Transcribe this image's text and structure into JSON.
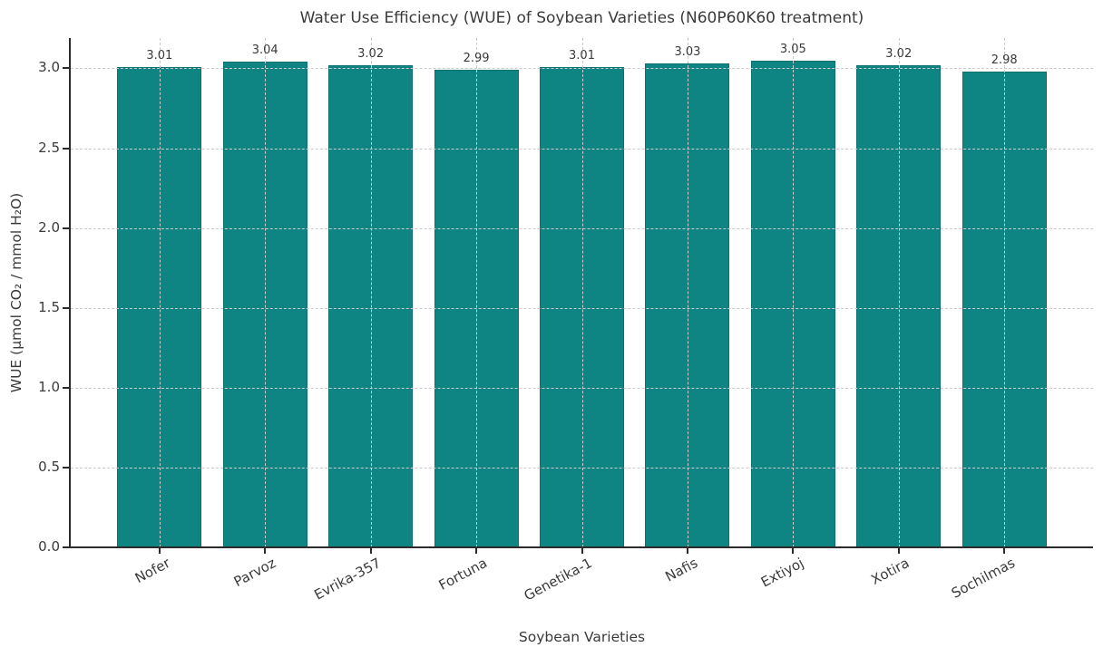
{
  "chart_data": {
    "type": "bar",
    "title": "Water Use Efficiency (WUE) of Soybean Varieties (N60P60K60 treatment)",
    "xlabel": "Soybean Varieties",
    "ylabel": "WUE (μmol CO₂ / mmol H₂O)",
    "categories": [
      "Nofer",
      "Parvoz",
      "Evrika-357",
      "Fortuna",
      "Genetika-1",
      "Nafis",
      "Extiyoj",
      "Xotira",
      "Sochilmas"
    ],
    "values": [
      3.01,
      3.04,
      3.02,
      2.99,
      3.01,
      3.03,
      3.05,
      3.02,
      2.98
    ],
    "value_labels": [
      "3.01",
      "3.04",
      "3.02",
      "2.99",
      "3.01",
      "3.03",
      "3.05",
      "3.02",
      "2.98"
    ],
    "yticks": [
      0.0,
      0.5,
      1.0,
      1.5,
      2.0,
      2.5,
      3.0
    ],
    "ytick_labels": [
      "0.0",
      "0.5",
      "1.0",
      "1.5",
      "2.0",
      "2.5",
      "3.0"
    ],
    "ylim": [
      0,
      3.19
    ],
    "grid": "dashed, horizontal at yticks and vertical at bar centers, drawn over bars",
    "legend": "none",
    "xtick_rotation_deg": 28,
    "colors": {
      "bar_fill": "#0e8582",
      "bar_edge": "#0b706e",
      "grid": "#cbcbcb",
      "spine": "#2b2b2b",
      "text": "#3a3a3a",
      "background": "#ffffff"
    }
  }
}
